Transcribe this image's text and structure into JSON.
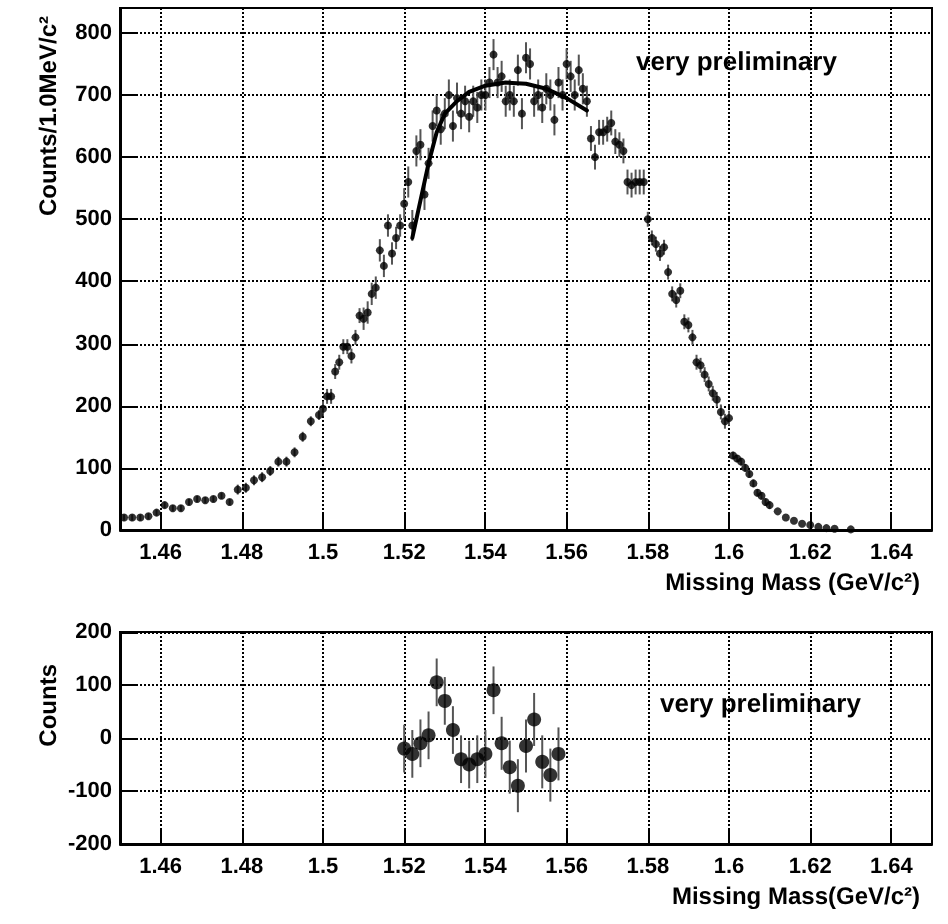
{
  "chart_data": [
    {
      "type": "scatter",
      "xlabel": "Missing Mass (GeV/c²)",
      "ylabel": "Counts/1.0MeV/c²",
      "annotations": [
        "very preliminary"
      ],
      "xlim": [
        1.45,
        1.65
      ],
      "ylim": [
        0,
        840
      ],
      "xticks": [
        1.46,
        1.48,
        1.5,
        1.52,
        1.54,
        1.56,
        1.58,
        1.6,
        1.62,
        1.64
      ],
      "yticks": [
        0,
        100,
        200,
        300,
        400,
        500,
        600,
        700,
        800
      ],
      "grid": true,
      "series": [
        {
          "color": "#000000",
          "marker": "circle",
          "x": [
            1.451,
            1.453,
            1.455,
            1.457,
            1.459,
            1.461,
            1.463,
            1.465,
            1.467,
            1.469,
            1.471,
            1.473,
            1.475,
            1.477,
            1.479,
            1.481,
            1.483,
            1.485,
            1.487,
            1.489,
            1.491,
            1.493,
            1.495,
            1.497,
            1.499,
            1.5,
            1.501,
            1.502,
            1.503,
            1.504,
            1.505,
            1.506,
            1.507,
            1.508,
            1.509,
            1.51,
            1.511,
            1.512,
            1.513,
            1.514,
            1.515,
            1.516,
            1.517,
            1.518,
            1.519,
            1.52,
            1.521,
            1.522,
            1.523,
            1.524,
            1.525,
            1.526,
            1.527,
            1.528,
            1.529,
            1.53,
            1.531,
            1.532,
            1.533,
            1.534,
            1.535,
            1.536,
            1.537,
            1.538,
            1.539,
            1.54,
            1.541,
            1.542,
            1.543,
            1.544,
            1.545,
            1.546,
            1.547,
            1.548,
            1.549,
            1.55,
            1.551,
            1.552,
            1.553,
            1.554,
            1.555,
            1.556,
            1.557,
            1.558,
            1.559,
            1.56,
            1.561,
            1.562,
            1.563,
            1.564,
            1.565,
            1.566,
            1.567,
            1.568,
            1.569,
            1.57,
            1.571,
            1.572,
            1.573,
            1.574,
            1.575,
            1.576,
            1.577,
            1.578,
            1.579,
            1.58,
            1.581,
            1.582,
            1.583,
            1.584,
            1.585,
            1.586,
            1.587,
            1.588,
            1.589,
            1.59,
            1.591,
            1.592,
            1.593,
            1.594,
            1.595,
            1.596,
            1.597,
            1.598,
            1.599,
            1.6,
            1.601,
            1.602,
            1.603,
            1.604,
            1.605,
            1.606,
            1.607,
            1.608,
            1.609,
            1.61,
            1.612,
            1.614,
            1.616,
            1.618,
            1.62,
            1.622,
            1.624,
            1.626,
            1.63
          ],
          "values": [
            20,
            20,
            20,
            22,
            28,
            40,
            35,
            35,
            45,
            50,
            48,
            50,
            55,
            45,
            65,
            68,
            80,
            85,
            95,
            110,
            110,
            125,
            150,
            175,
            185,
            195,
            215,
            215,
            255,
            270,
            295,
            295,
            280,
            310,
            345,
            340,
            350,
            380,
            390,
            450,
            425,
            490,
            445,
            470,
            490,
            525,
            560,
            490,
            610,
            620,
            540,
            590,
            650,
            675,
            645,
            670,
            700,
            650,
            695,
            670,
            690,
            665,
            690,
            680,
            700,
            700,
            720,
            765,
            720,
            730,
            690,
            700,
            690,
            740,
            670,
            760,
            750,
            690,
            700,
            680,
            710,
            700,
            660,
            720,
            700,
            750,
            730,
            700,
            740,
            710,
            690,
            630,
            600,
            640,
            640,
            645,
            655,
            625,
            620,
            610,
            560,
            555,
            560,
            560,
            560,
            500,
            470,
            460,
            445,
            455,
            415,
            380,
            370,
            385,
            335,
            330,
            310,
            270,
            265,
            250,
            235,
            220,
            210,
            190,
            175,
            180,
            120,
            115,
            110,
            100,
            90,
            75,
            60,
            55,
            45,
            40,
            30,
            20,
            15,
            10,
            8,
            5,
            3,
            2,
            1
          ],
          "errors": [
            5,
            5,
            5,
            5,
            5,
            5,
            5,
            5,
            5,
            5,
            5,
            5,
            5,
            5,
            8,
            8,
            8,
            8,
            8,
            8,
            8,
            8,
            8,
            8,
            8,
            12,
            12,
            12,
            12,
            12,
            12,
            12,
            12,
            12,
            12,
            18,
            18,
            18,
            18,
            18,
            18,
            18,
            18,
            18,
            18,
            25,
            25,
            25,
            25,
            25,
            25,
            25,
            25,
            25,
            25,
            25,
            25,
            25,
            25,
            25,
            25,
            25,
            25,
            25,
            25,
            25,
            25,
            25,
            25,
            25,
            25,
            25,
            25,
            25,
            25,
            25,
            25,
            25,
            25,
            25,
            25,
            25,
            25,
            25,
            25,
            25,
            25,
            25,
            25,
            25,
            25,
            20,
            20,
            20,
            20,
            20,
            20,
            20,
            20,
            20,
            20,
            20,
            20,
            20,
            20,
            12,
            12,
            12,
            12,
            12,
            12,
            12,
            12,
            12,
            12,
            12,
            12,
            12,
            12,
            12,
            12,
            12,
            12,
            12,
            12,
            12,
            6,
            6,
            6,
            6,
            6,
            6,
            6,
            6,
            6,
            6,
            null,
            null,
            null,
            null,
            null,
            null,
            null,
            null,
            null
          ]
        },
        {
          "type": "line",
          "color": "#000000",
          "marker": "none",
          "line_style": "solid",
          "x": [
            1.522,
            1.524,
            1.526,
            1.528,
            1.53,
            1.533,
            1.536,
            1.54,
            1.545,
            1.55,
            1.555,
            1.56,
            1.565
          ],
          "values": [
            470,
            530,
            590,
            640,
            670,
            690,
            705,
            715,
            720,
            718,
            710,
            695,
            675
          ]
        }
      ]
    },
    {
      "type": "scatter",
      "xlabel": "Missing Mass(GeV/c²)",
      "ylabel": "Counts",
      "annotations": [
        "very preliminary"
      ],
      "xlim": [
        1.45,
        1.65
      ],
      "ylim": [
        -200,
        200
      ],
      "xticks": [
        1.46,
        1.48,
        1.5,
        1.52,
        1.54,
        1.56,
        1.58,
        1.6,
        1.62,
        1.64
      ],
      "yticks": [
        -200,
        -100,
        0,
        100,
        200
      ],
      "grid": true,
      "series": [
        {
          "color": "#000000",
          "marker": "circle",
          "x": [
            1.52,
            1.522,
            1.524,
            1.526,
            1.528,
            1.53,
            1.532,
            1.534,
            1.536,
            1.538,
            1.54,
            1.542,
            1.544,
            1.546,
            1.548,
            1.55,
            1.552,
            1.554,
            1.556,
            1.558
          ],
          "values": [
            -20,
            -30,
            -10,
            5,
            105,
            70,
            15,
            -40,
            -50,
            -40,
            -30,
            90,
            -10,
            -55,
            -90,
            -15,
            35,
            -45,
            -70,
            -30
          ],
          "errors": [
            45,
            45,
            45,
            45,
            45,
            45,
            45,
            45,
            45,
            45,
            45,
            45,
            50,
            50,
            50,
            50,
            50,
            50,
            50,
            50
          ]
        }
      ]
    }
  ]
}
